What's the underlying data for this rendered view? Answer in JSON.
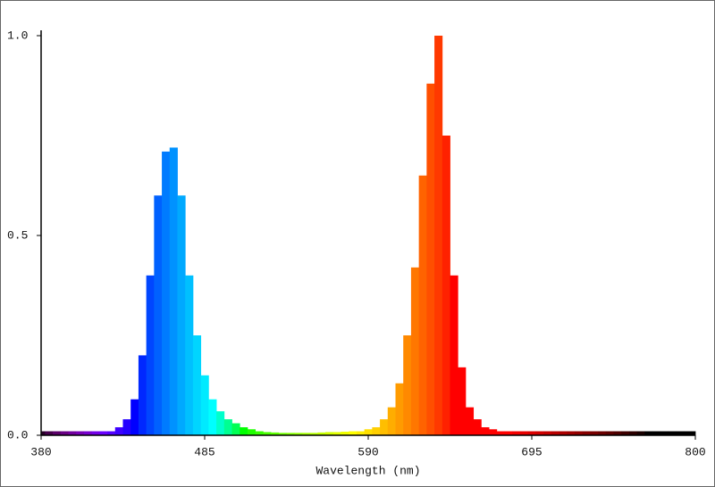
{
  "chart_data": {
    "type": "spectrum",
    "x_label": "Wavelength (nm)",
    "x": [
      380,
      385,
      390,
      395,
      400,
      405,
      410,
      415,
      420,
      425,
      430,
      435,
      440,
      445,
      450,
      455,
      460,
      465,
      470,
      475,
      480,
      485,
      490,
      495,
      500,
      505,
      510,
      515,
      520,
      525,
      530,
      535,
      540,
      545,
      550,
      555,
      560,
      565,
      570,
      575,
      580,
      585,
      590,
      595,
      600,
      605,
      610,
      615,
      620,
      625,
      630,
      635,
      640,
      645,
      650,
      655,
      660,
      665,
      670,
      675,
      680,
      685,
      690,
      695,
      700,
      705,
      710,
      715,
      720,
      725,
      730,
      735,
      740,
      745,
      750,
      755,
      760,
      765,
      770,
      775,
      780,
      785,
      790,
      795,
      800
    ],
    "values": [
      0.01,
      0.01,
      0.01,
      0.01,
      0.01,
      0.01,
      0.01,
      0.01,
      0.01,
      0.01,
      0.02,
      0.04,
      0.09,
      0.2,
      0.4,
      0.6,
      0.71,
      0.72,
      0.6,
      0.4,
      0.25,
      0.15,
      0.09,
      0.06,
      0.04,
      0.03,
      0.02,
      0.015,
      0.01,
      0.008,
      0.007,
      0.006,
      0.006,
      0.006,
      0.006,
      0.006,
      0.007,
      0.008,
      0.008,
      0.009,
      0.01,
      0.01,
      0.015,
      0.02,
      0.04,
      0.07,
      0.13,
      0.25,
      0.42,
      0.65,
      0.88,
      1.0,
      0.75,
      0.4,
      0.17,
      0.07,
      0.04,
      0.02,
      0.015,
      0.01,
      0.01,
      0.01,
      0.01,
      0.01,
      0.01,
      0.01,
      0.01,
      0.01,
      0.01,
      0.01,
      0.01,
      0.01,
      0.01,
      0.01,
      0.01,
      0.01,
      0.01,
      0.01,
      0.01,
      0.01,
      0.01,
      0.01,
      0.01,
      0.01,
      0.01
    ],
    "xlim": [
      380,
      800
    ],
    "xticks": [
      380,
      485,
      590,
      695,
      800
    ],
    "ylim": [
      0,
      1
    ],
    "yticks": [
      {
        "value": 0,
        "label": "0.0"
      },
      {
        "value": 0.5,
        "label": "0.5"
      },
      {
        "value": 1,
        "label": "1.0"
      }
    ],
    "grid": false
  }
}
